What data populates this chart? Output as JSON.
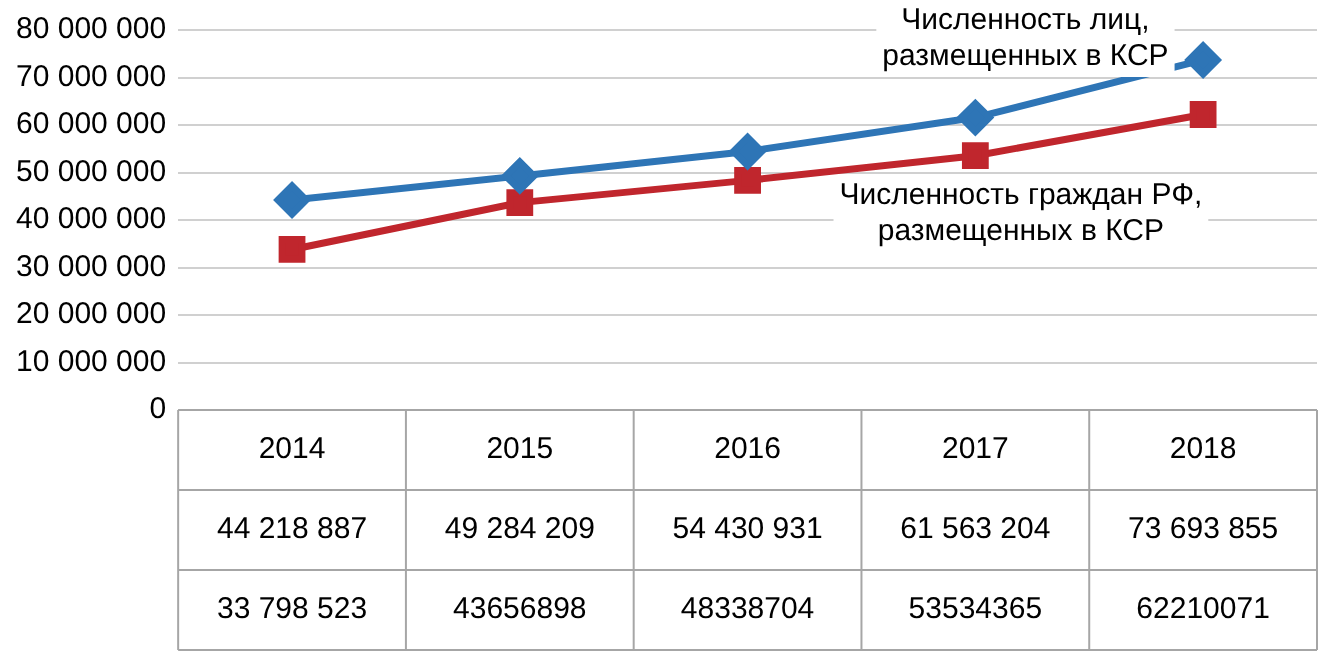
{
  "chart_data": {
    "type": "line",
    "categories": [
      "2014",
      "2015",
      "2016",
      "2017",
      "2018"
    ],
    "series": [
      {
        "name": "Численность лиц,\nразмещенных в КСР",
        "color": "#2e75b6",
        "marker": "diamond",
        "values": [
          44218887,
          49284209,
          54430931,
          61563204,
          73693855
        ],
        "value_labels": [
          "44 218 887",
          "49 284 209",
          "54 430 931",
          "61 563 204",
          "73 693 855"
        ]
      },
      {
        "name": "Численность граждан РФ,\nразмещенных в КСР",
        "color": "#c0262d",
        "marker": "square",
        "values": [
          33798523,
          43656898,
          48338704,
          53534365,
          62210071
        ],
        "value_labels": [
          "33 798 523",
          "43656898",
          "48338704",
          "53534365",
          "62210071"
        ]
      }
    ],
    "ylim": [
      0,
      80000000
    ],
    "yticks": [
      {
        "value": 0,
        "label": "0"
      },
      {
        "value": 10000000,
        "label": "10 000 000"
      },
      {
        "value": 20000000,
        "label": "20 000 000"
      },
      {
        "value": 30000000,
        "label": "30 000 000"
      },
      {
        "value": 40000000,
        "label": "40 000 000"
      },
      {
        "value": 50000000,
        "label": "50 000 000"
      },
      {
        "value": 60000000,
        "label": "60 000 000"
      },
      {
        "value": 70000000,
        "label": "70 000 000"
      },
      {
        "value": 80000000,
        "label": "80 000 000"
      }
    ],
    "grid": "y",
    "legend": false,
    "line_style": "solid"
  }
}
